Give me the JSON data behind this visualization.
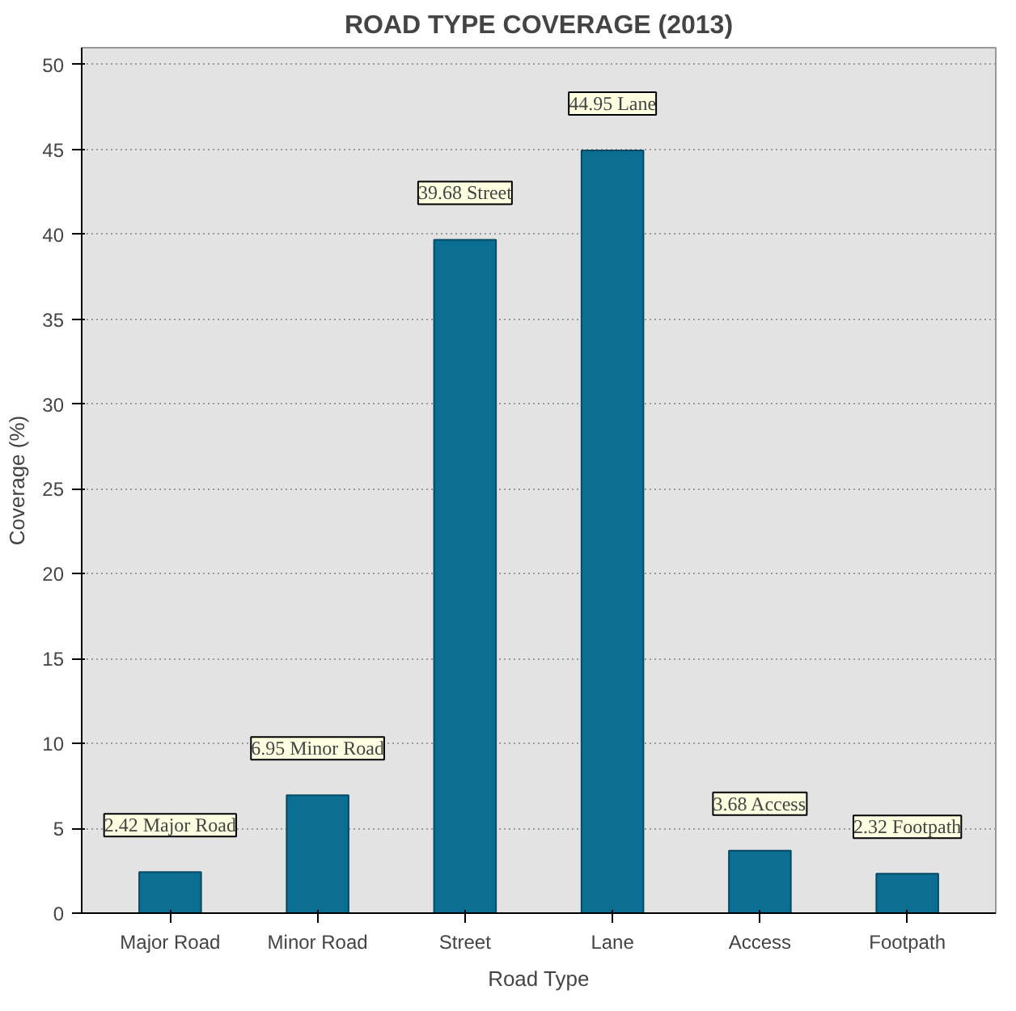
{
  "chart_data": {
    "type": "bar",
    "title": "ROAD TYPE COVERAGE (2013)",
    "xlabel": "Road Type",
    "ylabel": "Coverage (%)",
    "categories": [
      "Major Road",
      "Minor Road",
      "Street",
      "Lane",
      "Access",
      "Footpath"
    ],
    "values": [
      2.42,
      6.95,
      39.68,
      44.95,
      3.68,
      2.32
    ],
    "value_labels": [
      "2.42 Major Road",
      "6.95 Minor Road",
      "39.68 Street",
      "44.95 Lane",
      "3.68 Access",
      "2.32 Footpath"
    ],
    "color": "#0b6e92",
    "ylim": [
      0,
      51
    ],
    "yticks": [
      0,
      5,
      10,
      15,
      20,
      25,
      30,
      35,
      40,
      45,
      50
    ],
    "grid": "y"
  }
}
